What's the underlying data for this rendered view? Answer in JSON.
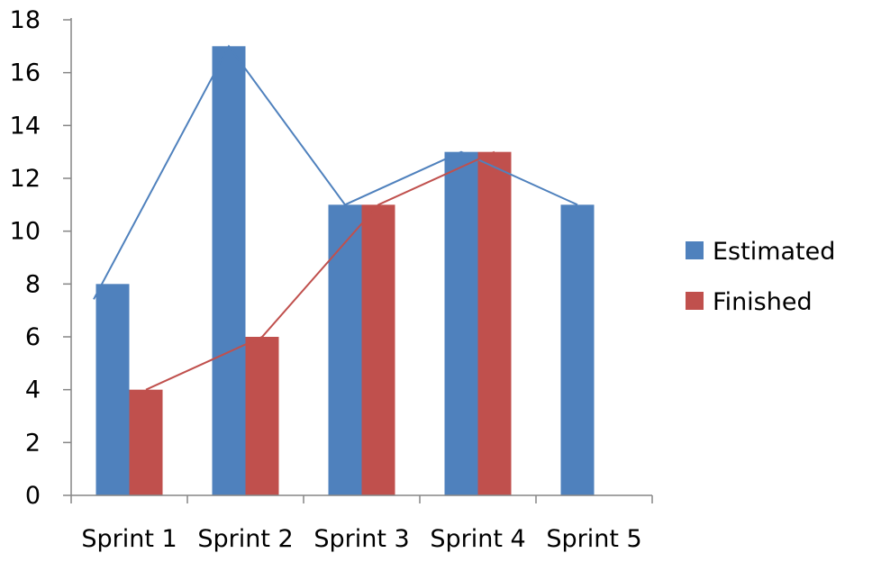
{
  "chart_data": {
    "type": "bar",
    "title": "",
    "xlabel": "",
    "ylabel": "",
    "categories": [
      "Sprint 1",
      "Sprint 2",
      "Sprint 3",
      "Sprint 4",
      "Sprint 5"
    ],
    "series": [
      {
        "name": "Estimated",
        "values": [
          8,
          17,
          11,
          13,
          11
        ],
        "color": "#4F81BD"
      },
      {
        "name": "Finished",
        "values": [
          4,
          6,
          11,
          13,
          null
        ],
        "color": "#C0504D"
      }
    ],
    "trend_lines": [
      {
        "series": "Estimated",
        "color": "#4F81BD"
      },
      {
        "series": "Finished",
        "color": "#C0504D"
      }
    ],
    "ylim": [
      0,
      18
    ],
    "yticks": [
      0,
      2,
      4,
      6,
      8,
      10,
      12,
      14,
      16,
      18
    ],
    "grid": false,
    "legend_position": "right"
  }
}
